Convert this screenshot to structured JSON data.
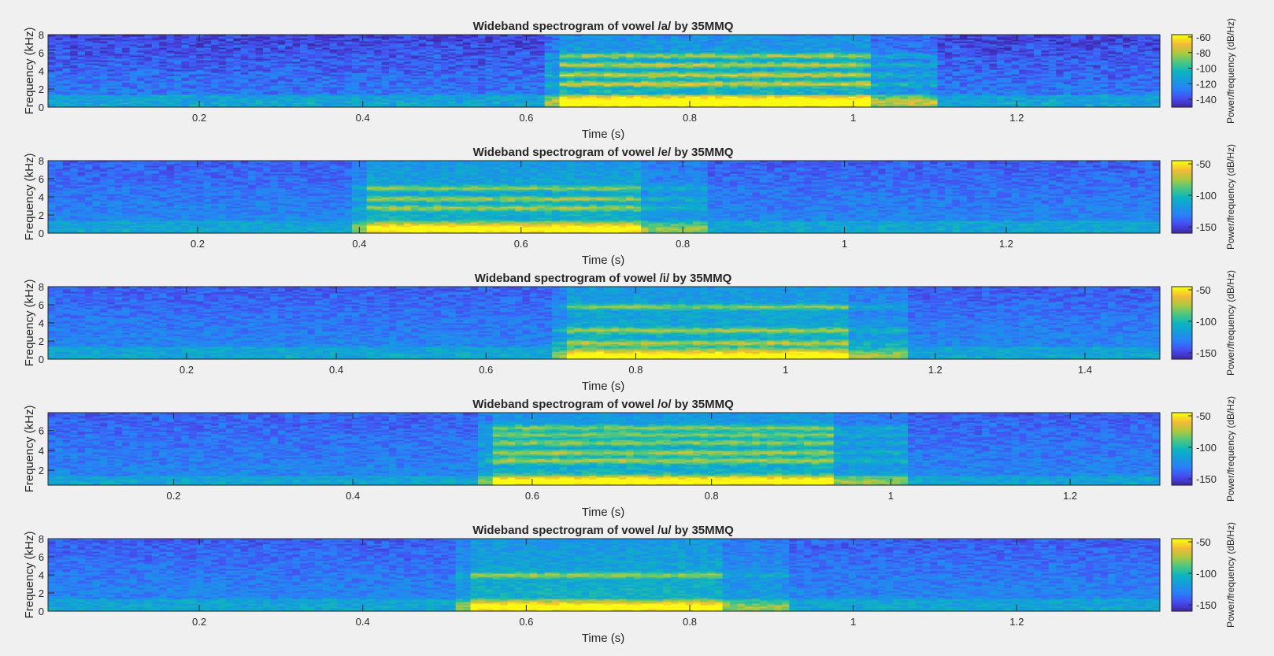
{
  "figure": {
    "background": "#f0f0f0"
  },
  "chart_data": [
    {
      "type": "heatmap",
      "title": "Wideband spectrogram of vowel /a/ by 35MMQ",
      "xlabel": "Time (s)",
      "ylabel": "Frequency (kHz)",
      "colorbar_label": "Power/frequency (dB/Hz)",
      "xlim": [
        0.015,
        1.375
      ],
      "ylim": [
        0,
        8
      ],
      "xticks": [
        0.2,
        0.4,
        0.6,
        0.8,
        1,
        1.2
      ],
      "xtick_labels": [
        "0.2",
        "0.4",
        "0.6",
        "0.8",
        "1",
        "1.2"
      ],
      "yticks": [
        0,
        2,
        4,
        6,
        8
      ],
      "ytick_labels": [
        "0",
        "2",
        "4",
        "6",
        "8"
      ],
      "clim": [
        -150,
        -57
      ],
      "cticks": [
        -140,
        -120,
        -100,
        -80,
        -60
      ],
      "ctick_labels": [
        "-140",
        "-120",
        "-100",
        "-80",
        "-60"
      ],
      "colormap": "parula",
      "voiced_segment_s": [
        0.64,
        1.02
      ],
      "formant_bands_khz": [
        0.6,
        2.6,
        3.6,
        4.7,
        5.7
      ]
    },
    {
      "type": "heatmap",
      "title": "Wideband spectrogram of vowel /e/ by 35MMQ",
      "xlabel": "Time (s)",
      "ylabel": "Frequency (kHz)",
      "colorbar_label": "Power/frequency (dB/Hz)",
      "xlim": [
        0.015,
        1.39
      ],
      "ylim": [
        0,
        8
      ],
      "xticks": [
        0.2,
        0.4,
        0.6,
        0.8,
        1,
        1.2
      ],
      "xtick_labels": [
        "0.2",
        "0.4",
        "0.6",
        "0.8",
        "1",
        "1.2"
      ],
      "yticks": [
        0,
        2,
        4,
        6,
        8
      ],
      "ytick_labels": [
        "0",
        "2",
        "4",
        "6",
        "8"
      ],
      "clim": [
        -160,
        -45
      ],
      "cticks": [
        -150,
        -100,
        -50
      ],
      "ctick_labels": [
        "-150",
        "-100",
        "-50"
      ],
      "colormap": "parula",
      "voiced_segment_s": [
        0.41,
        0.75
      ],
      "formant_bands_khz": [
        0.5,
        2.8,
        3.8,
        5.0
      ]
    },
    {
      "type": "heatmap",
      "title": "Wideband spectrogram of vowel /i/ by 35MMQ",
      "xlabel": "Time (s)",
      "ylabel": "Frequency (kHz)",
      "colorbar_label": "Power/frequency (dB/Hz)",
      "xlim": [
        0.015,
        1.5
      ],
      "ylim": [
        0,
        8
      ],
      "xticks": [
        0.2,
        0.4,
        0.6,
        0.8,
        1,
        1.2,
        1.4
      ],
      "xtick_labels": [
        "0.2",
        "0.4",
        "0.6",
        "0.8",
        "1",
        "1.2",
        "1.4"
      ],
      "yticks": [
        0,
        2,
        4,
        6,
        8
      ],
      "ytick_labels": [
        "0",
        "2",
        "4",
        "6",
        "8"
      ],
      "clim": [
        -160,
        -45
      ],
      "cticks": [
        -150,
        -100,
        -50
      ],
      "ctick_labels": [
        "-150",
        "-100",
        "-50"
      ],
      "colormap": "parula",
      "voiced_segment_s": [
        0.71,
        1.08
      ],
      "formant_bands_khz": [
        0.4,
        1.8,
        3.2,
        5.8
      ]
    },
    {
      "type": "heatmap",
      "title": "Wideband spectrogram of vowel /o/ by 35MMQ",
      "xlabel": "Time (s)",
      "ylabel": "Frequency (kHz)",
      "colorbar_label": "Power/frequency (dB/Hz)",
      "xlim": [
        0.06,
        1.3
      ],
      "ylim": [
        0.5,
        7.8
      ],
      "xticks": [
        0.2,
        0.4,
        0.6,
        0.8,
        1,
        1.2
      ],
      "xtick_labels": [
        "0.2",
        "0.4",
        "0.6",
        "0.8",
        "1",
        "1.2"
      ],
      "yticks": [
        2,
        4,
        6
      ],
      "ytick_labels": [
        "2",
        "4",
        "6"
      ],
      "clim": [
        -160,
        -45
      ],
      "cticks": [
        -150,
        -100,
        -50
      ],
      "ctick_labels": [
        "-150",
        "-100",
        "-50"
      ],
      "colormap": "parula",
      "voiced_segment_s": [
        0.56,
        0.94
      ],
      "formant_bands_khz": [
        0.9,
        3.0,
        3.8,
        4.8,
        5.6,
        6.3
      ]
    },
    {
      "type": "heatmap",
      "title": "Wideband spectrogram of vowel /u/ by 35MMQ",
      "xlabel": "Time (s)",
      "ylabel": "Frequency (kHz)",
      "colorbar_label": "Power/frequency (dB/Hz)",
      "xlim": [
        0.015,
        1.375
      ],
      "ylim": [
        0,
        8
      ],
      "xticks": [
        0.2,
        0.4,
        0.6,
        0.8,
        1,
        1.2
      ],
      "xtick_labels": [
        "0.2",
        "0.4",
        "0.6",
        "0.8",
        "1",
        "1.2"
      ],
      "yticks": [
        0,
        2,
        4,
        6,
        8
      ],
      "ytick_labels": [
        "0",
        "2",
        "4",
        "6",
        "8"
      ],
      "clim": [
        -160,
        -45
      ],
      "cticks": [
        -150,
        -100,
        -50
      ],
      "ctick_labels": [
        "-150",
        "-100",
        "-50"
      ],
      "colormap": "parula",
      "voiced_segment_s": [
        0.53,
        0.84
      ],
      "formant_bands_khz": [
        0.5,
        4.0
      ]
    }
  ]
}
